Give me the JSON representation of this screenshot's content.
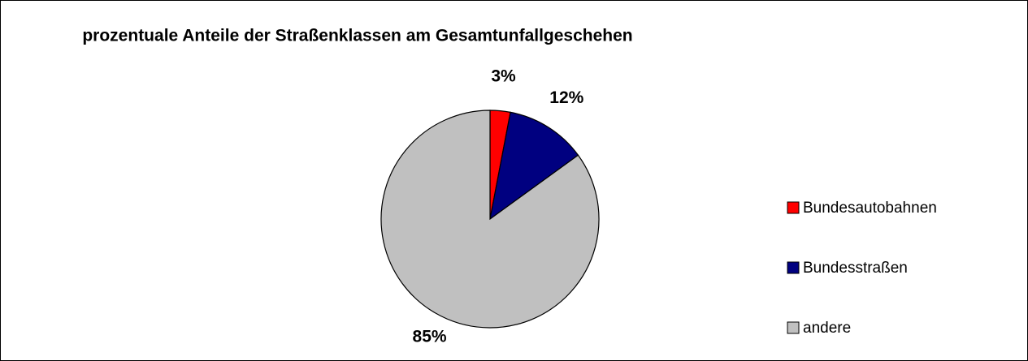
{
  "chart_data": {
    "type": "pie",
    "title": "prozentuale Anteile der Straßenklassen am Gesamtunfallgeschehen",
    "categories": [
      "Bundesautobahnen",
      "Bundesstraßen",
      "andere"
    ],
    "values": [
      3,
      12,
      85
    ],
    "value_labels": [
      "3%",
      "12%",
      "85%"
    ],
    "colors": [
      "#ff0000",
      "#000080",
      "#c0c0c0"
    ],
    "legend": "right"
  }
}
